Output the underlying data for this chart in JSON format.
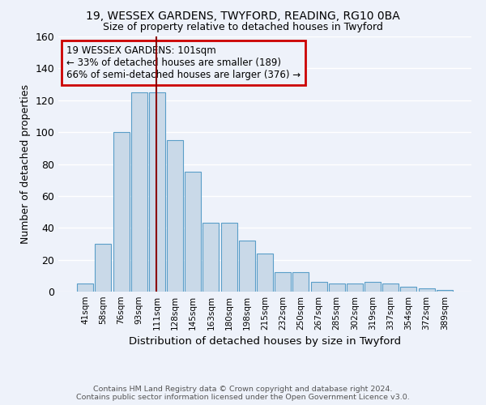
{
  "title1": "19, WESSEX GARDENS, TWYFORD, READING, RG10 0BA",
  "title2": "Size of property relative to detached houses in Twyford",
  "xlabel": "Distribution of detached houses by size in Twyford",
  "ylabel": "Number of detached properties",
  "footnote1": "Contains HM Land Registry data © Crown copyright and database right 2024.",
  "footnote2": "Contains public sector information licensed under the Open Government Licence v3.0.",
  "annotation_line1": "19 WESSEX GARDENS: 101sqm",
  "annotation_line2": "← 33% of detached houses are smaller (189)",
  "annotation_line3": "66% of semi-detached houses are larger (376) →",
  "bar_labels": [
    "41sqm",
    "58sqm",
    "76sqm",
    "93sqm",
    "111sqm",
    "128sqm",
    "145sqm",
    "163sqm",
    "180sqm",
    "198sqm",
    "215sqm",
    "232sqm",
    "250sqm",
    "267sqm",
    "285sqm",
    "302sqm",
    "319sqm",
    "337sqm",
    "354sqm",
    "372sqm",
    "389sqm"
  ],
  "bar_values": [
    5,
    30,
    100,
    125,
    125,
    95,
    75,
    43,
    43,
    32,
    24,
    12,
    12,
    6,
    5,
    5,
    6,
    5,
    3,
    2,
    1
  ],
  "bar_color": "#c9d9e8",
  "bar_edge_color": "#5a9ec8",
  "vline_color": "#8b0000",
  "ylim": [
    0,
    160
  ],
  "yticks": [
    0,
    20,
    40,
    60,
    80,
    100,
    120,
    140,
    160
  ],
  "bg_color": "#eef2fa",
  "annotation_box_color": "#cc0000",
  "grid_color": "#ffffff"
}
